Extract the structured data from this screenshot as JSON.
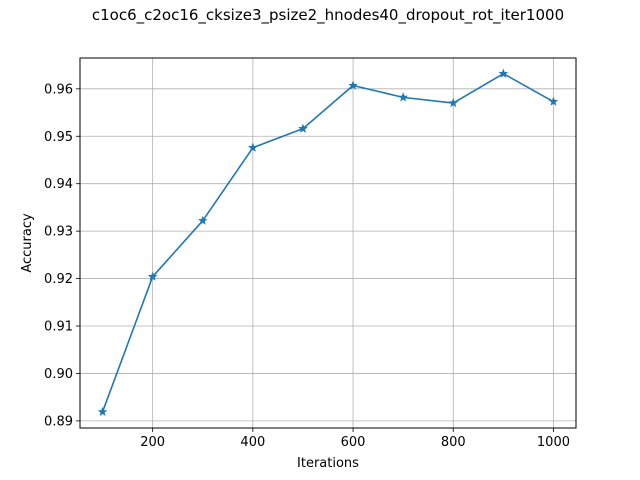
{
  "chart_data": {
    "type": "line",
    "title": "c1oc6_c2oc16_cksize3_psize2_hnodes40_dropout_rot_iter1000",
    "xlabel": "Iterations",
    "ylabel": "Accuracy",
    "xlim": [
      55,
      1045
    ],
    "ylim": [
      0.8885,
      0.9665
    ],
    "xticks": [
      200,
      400,
      600,
      800,
      1000
    ],
    "xtick_labels": [
      "200",
      "400",
      "600",
      "800",
      "1000"
    ],
    "yticks": [
      0.89,
      0.9,
      0.91,
      0.92,
      0.93,
      0.94,
      0.95,
      0.96
    ],
    "ytick_labels": [
      "0.89",
      "0.90",
      "0.91",
      "0.92",
      "0.93",
      "0.94",
      "0.95",
      "0.96"
    ],
    "grid": true,
    "marker": "star",
    "color": "#1f77b4",
    "series": [
      {
        "x": [
          100,
          200,
          300,
          400,
          500,
          600,
          700,
          800,
          900,
          1000
        ],
        "values": [
          0.8919,
          0.9204,
          0.9322,
          0.9476,
          0.9516,
          0.9607,
          0.9582,
          0.957,
          0.9632,
          0.9573
        ]
      }
    ]
  }
}
